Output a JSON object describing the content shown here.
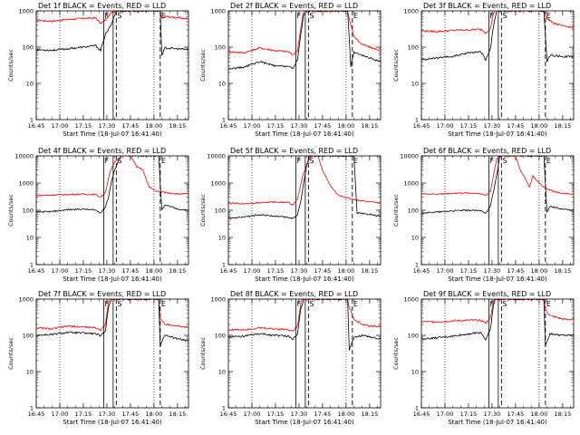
{
  "chart_data": {
    "type": "line",
    "layout": "3x3 grid",
    "common": {
      "ylabel": "Counts/sec",
      "xlabel": "Start Time (18-Jul-07 16:41:40)",
      "x_ticks": [
        "16:45",
        "17:00",
        "17:15",
        "17:30",
        "17:45",
        "18:00",
        "18:15"
      ],
      "x_tick_minutes": [
        0,
        15,
        30,
        45,
        60,
        75,
        90
      ],
      "xlim_minutes": [
        0,
        97
      ],
      "y_scale": "log",
      "dotted_lines_minutes": [
        15,
        75
      ],
      "solid_lines": [
        {
          "label": "F",
          "minute": 43
        },
        {
          "label": "",
          "minute": 49
        }
      ],
      "dashed_lines": [
        {
          "label": "S",
          "minute": 51
        },
        {
          "label": "E",
          "minute": 79
        }
      ],
      "series": [
        {
          "name": "Events",
          "color": "#000000"
        },
        {
          "name": "LLD",
          "color": "#ff0000"
        }
      ]
    },
    "panels": [
      {
        "title": "Det 1f BLACK = Events, RED = LLD",
        "yticks": [
          "1",
          "10",
          "100",
          "1000"
        ],
        "ylim": [
          1,
          1000
        ],
        "events": [
          [
            0,
            85
          ],
          [
            10,
            82
          ],
          [
            20,
            90
          ],
          [
            30,
            100
          ],
          [
            38,
            110
          ],
          [
            41,
            80
          ],
          [
            44,
            220
          ],
          [
            46,
            300
          ],
          [
            48,
            450
          ],
          [
            51,
            1000
          ],
          [
            79,
            1000
          ],
          [
            80,
            60
          ],
          [
            82,
            95
          ],
          [
            90,
            90
          ],
          [
            97,
            85
          ]
        ],
        "lld": [
          [
            0,
            550
          ],
          [
            10,
            520
          ],
          [
            20,
            580
          ],
          [
            30,
            620
          ],
          [
            38,
            640
          ],
          [
            41,
            450
          ],
          [
            44,
            560
          ],
          [
            47,
            800
          ],
          [
            49,
            1000
          ],
          [
            79,
            1000
          ],
          [
            80,
            600
          ],
          [
            82,
            700
          ],
          [
            90,
            650
          ],
          [
            97,
            600
          ]
        ]
      },
      {
        "title": "Det 2f BLACK = Events, RED = LLD",
        "yticks": [
          "1",
          "10",
          "100",
          "1000"
        ],
        "ylim": [
          1,
          1000
        ],
        "events": [
          [
            0,
            25
          ],
          [
            10,
            28
          ],
          [
            20,
            40
          ],
          [
            30,
            30
          ],
          [
            38,
            30
          ],
          [
            41,
            25
          ],
          [
            44,
            45
          ],
          [
            46,
            200
          ],
          [
            48,
            800
          ],
          [
            50,
            1000
          ],
          [
            76,
            1000
          ],
          [
            78,
            30
          ],
          [
            80,
            70
          ],
          [
            90,
            50
          ],
          [
            97,
            40
          ]
        ],
        "lld": [
          [
            0,
            75
          ],
          [
            10,
            70
          ],
          [
            20,
            95
          ],
          [
            30,
            80
          ],
          [
            38,
            75
          ],
          [
            41,
            60
          ],
          [
            44,
            80
          ],
          [
            46,
            300
          ],
          [
            48,
            1000
          ],
          [
            76,
            1000
          ],
          [
            77,
            600
          ],
          [
            80,
            200
          ],
          [
            85,
            120
          ],
          [
            90,
            100
          ],
          [
            97,
            80
          ]
        ]
      },
      {
        "title": "Det 3f BLACK = Events, RED = LLD",
        "yticks": [
          "1",
          "10",
          "100",
          "1000"
        ],
        "ylim": [
          1,
          1000
        ],
        "events": [
          [
            0,
            45
          ],
          [
            10,
            50
          ],
          [
            20,
            55
          ],
          [
            30,
            70
          ],
          [
            38,
            75
          ],
          [
            41,
            45
          ],
          [
            44,
            90
          ],
          [
            46,
            400
          ],
          [
            48,
            1000
          ],
          [
            78,
            1000
          ],
          [
            80,
            40
          ],
          [
            82,
            60
          ],
          [
            90,
            55
          ],
          [
            97,
            55
          ]
        ],
        "lld": [
          [
            0,
            280
          ],
          [
            10,
            270
          ],
          [
            20,
            290
          ],
          [
            30,
            300
          ],
          [
            38,
            310
          ],
          [
            41,
            250
          ],
          [
            44,
            320
          ],
          [
            46,
            900
          ],
          [
            47,
            1000
          ],
          [
            78,
            1000
          ],
          [
            80,
            600
          ],
          [
            85,
            450
          ],
          [
            90,
            380
          ],
          [
            97,
            350
          ]
        ]
      },
      {
        "title": "Det 4f BLACK = Events, RED = LLD",
        "yticks": [
          "1",
          "10",
          "100",
          "1000",
          "10000"
        ],
        "ylim": [
          1,
          10000
        ],
        "events": [
          [
            0,
            85
          ],
          [
            10,
            90
          ],
          [
            20,
            105
          ],
          [
            30,
            110
          ],
          [
            38,
            100
          ],
          [
            41,
            80
          ],
          [
            44,
            130
          ],
          [
            46,
            300
          ],
          [
            48,
            1200
          ],
          [
            50,
            3000
          ],
          [
            52,
            6000
          ],
          [
            54,
            10000
          ],
          [
            78,
            10000
          ],
          [
            80,
            100
          ],
          [
            82,
            160
          ],
          [
            90,
            110
          ],
          [
            97,
            100
          ]
        ],
        "lld": [
          [
            0,
            350
          ],
          [
            10,
            360
          ],
          [
            20,
            380
          ],
          [
            30,
            390
          ],
          [
            38,
            380
          ],
          [
            41,
            300
          ],
          [
            44,
            450
          ],
          [
            47,
            2500
          ],
          [
            50,
            6000
          ],
          [
            54,
            10000
          ],
          [
            60,
            10000
          ],
          [
            64,
            4000
          ],
          [
            68,
            3000
          ],
          [
            72,
            700
          ],
          [
            77,
            500
          ],
          [
            82,
            450
          ],
          [
            90,
            400
          ],
          [
            97,
            400
          ]
        ]
      },
      {
        "title": "Det 5f BLACK = Events, RED = LLD",
        "yticks": [
          "1",
          "10",
          "100",
          "1000",
          "10000"
        ],
        "ylim": [
          1,
          10000
        ],
        "events": [
          [
            0,
            50
          ],
          [
            10,
            55
          ],
          [
            20,
            70
          ],
          [
            30,
            60
          ],
          [
            38,
            55
          ],
          [
            41,
            50
          ],
          [
            44,
            70
          ],
          [
            46,
            200
          ],
          [
            48,
            1000
          ],
          [
            50,
            5000
          ],
          [
            52,
            10000
          ],
          [
            80,
            10000
          ],
          [
            82,
            80
          ],
          [
            90,
            70
          ],
          [
            97,
            60
          ]
        ],
        "lld": [
          [
            0,
            180
          ],
          [
            10,
            175
          ],
          [
            20,
            190
          ],
          [
            30,
            200
          ],
          [
            38,
            195
          ],
          [
            41,
            160
          ],
          [
            44,
            250
          ],
          [
            47,
            1500
          ],
          [
            50,
            5000
          ],
          [
            53,
            10000
          ],
          [
            57,
            10000
          ],
          [
            60,
            3000
          ],
          [
            65,
            800
          ],
          [
            70,
            350
          ],
          [
            80,
            250
          ],
          [
            90,
            200
          ],
          [
            97,
            180
          ]
        ]
      },
      {
        "title": "Det 6f BLACK = Events, RED = LLD",
        "yticks": [
          "1",
          "10",
          "100",
          "1000",
          "10000"
        ],
        "ylim": [
          1,
          10000
        ],
        "events": [
          [
            0,
            80
          ],
          [
            10,
            85
          ],
          [
            20,
            95
          ],
          [
            30,
            100
          ],
          [
            38,
            95
          ],
          [
            41,
            80
          ],
          [
            44,
            140
          ],
          [
            46,
            500
          ],
          [
            48,
            2000
          ],
          [
            50,
            10000
          ],
          [
            78,
            10000
          ],
          [
            80,
            80
          ],
          [
            82,
            140
          ],
          [
            90,
            110
          ],
          [
            97,
            100
          ]
        ],
        "lld": [
          [
            0,
            400
          ],
          [
            10,
            390
          ],
          [
            20,
            420
          ],
          [
            30,
            430
          ],
          [
            38,
            410
          ],
          [
            41,
            350
          ],
          [
            44,
            500
          ],
          [
            46,
            2000
          ],
          [
            48,
            8000
          ],
          [
            50,
            10000
          ],
          [
            60,
            10000
          ],
          [
            63,
            3000
          ],
          [
            66,
            1500
          ],
          [
            69,
            700
          ],
          [
            71,
            1800
          ],
          [
            74,
            1200
          ],
          [
            78,
            700
          ],
          [
            84,
            500
          ],
          [
            90,
            420
          ],
          [
            97,
            400
          ]
        ]
      },
      {
        "title": "Det 7f BLACK = Events, RED = LLD",
        "yticks": [
          "1",
          "10",
          "100",
          "1000"
        ],
        "ylim": [
          1,
          1000
        ],
        "events": [
          [
            0,
            100
          ],
          [
            10,
            105
          ],
          [
            20,
            120
          ],
          [
            30,
            115
          ],
          [
            38,
            110
          ],
          [
            41,
            95
          ],
          [
            44,
            130
          ],
          [
            46,
            600
          ],
          [
            48,
            1000
          ],
          [
            78,
            1000
          ],
          [
            79,
            50
          ],
          [
            80,
            70
          ],
          [
            82,
            100
          ],
          [
            90,
            80
          ],
          [
            97,
            70
          ]
        ],
        "lld": [
          [
            0,
            160
          ],
          [
            10,
            150
          ],
          [
            20,
            180
          ],
          [
            30,
            170
          ],
          [
            38,
            160
          ],
          [
            41,
            140
          ],
          [
            44,
            200
          ],
          [
            46,
            800
          ],
          [
            47,
            1000
          ],
          [
            78,
            1000
          ],
          [
            79,
            300
          ],
          [
            82,
            200
          ],
          [
            90,
            180
          ],
          [
            97,
            170
          ]
        ]
      },
      {
        "title": "Det 8f BLACK = Events, RED = LLD",
        "yticks": [
          "1",
          "10",
          "100",
          "1000"
        ],
        "ylim": [
          1,
          1000
        ],
        "events": [
          [
            0,
            90
          ],
          [
            10,
            95
          ],
          [
            20,
            110
          ],
          [
            30,
            100
          ],
          [
            38,
            95
          ],
          [
            41,
            80
          ],
          [
            44,
            110
          ],
          [
            46,
            500
          ],
          [
            48,
            1000
          ],
          [
            76,
            1000
          ],
          [
            77,
            40
          ],
          [
            80,
            85
          ],
          [
            85,
            100
          ],
          [
            90,
            90
          ],
          [
            97,
            80
          ]
        ],
        "lld": [
          [
            0,
            140
          ],
          [
            10,
            145
          ],
          [
            20,
            160
          ],
          [
            30,
            150
          ],
          [
            38,
            145
          ],
          [
            41,
            130
          ],
          [
            44,
            180
          ],
          [
            46,
            700
          ],
          [
            47,
            1000
          ],
          [
            76,
            1000
          ],
          [
            77,
            600
          ],
          [
            80,
            280
          ],
          [
            85,
            200
          ],
          [
            90,
            180
          ],
          [
            97,
            180
          ]
        ]
      },
      {
        "title": "Det 9f BLACK = Events, RED = LLD",
        "yticks": [
          "1",
          "10",
          "100",
          "1000"
        ],
        "ylim": [
          1,
          1000
        ],
        "events": [
          [
            0,
            80
          ],
          [
            10,
            85
          ],
          [
            20,
            95
          ],
          [
            30,
            110
          ],
          [
            38,
            120
          ],
          [
            41,
            75
          ],
          [
            44,
            150
          ],
          [
            46,
            700
          ],
          [
            47,
            1000
          ],
          [
            78,
            1000
          ],
          [
            79,
            50
          ],
          [
            80,
            70
          ],
          [
            82,
            110
          ],
          [
            90,
            100
          ],
          [
            97,
            100
          ]
        ],
        "lld": [
          [
            0,
            240
          ],
          [
            10,
            235
          ],
          [
            20,
            250
          ],
          [
            30,
            260
          ],
          [
            38,
            260
          ],
          [
            41,
            220
          ],
          [
            44,
            300
          ],
          [
            46,
            900
          ],
          [
            47,
            1000
          ],
          [
            78,
            1000
          ],
          [
            79,
            500
          ],
          [
            82,
            350
          ],
          [
            90,
            280
          ],
          [
            97,
            270
          ]
        ]
      }
    ]
  }
}
